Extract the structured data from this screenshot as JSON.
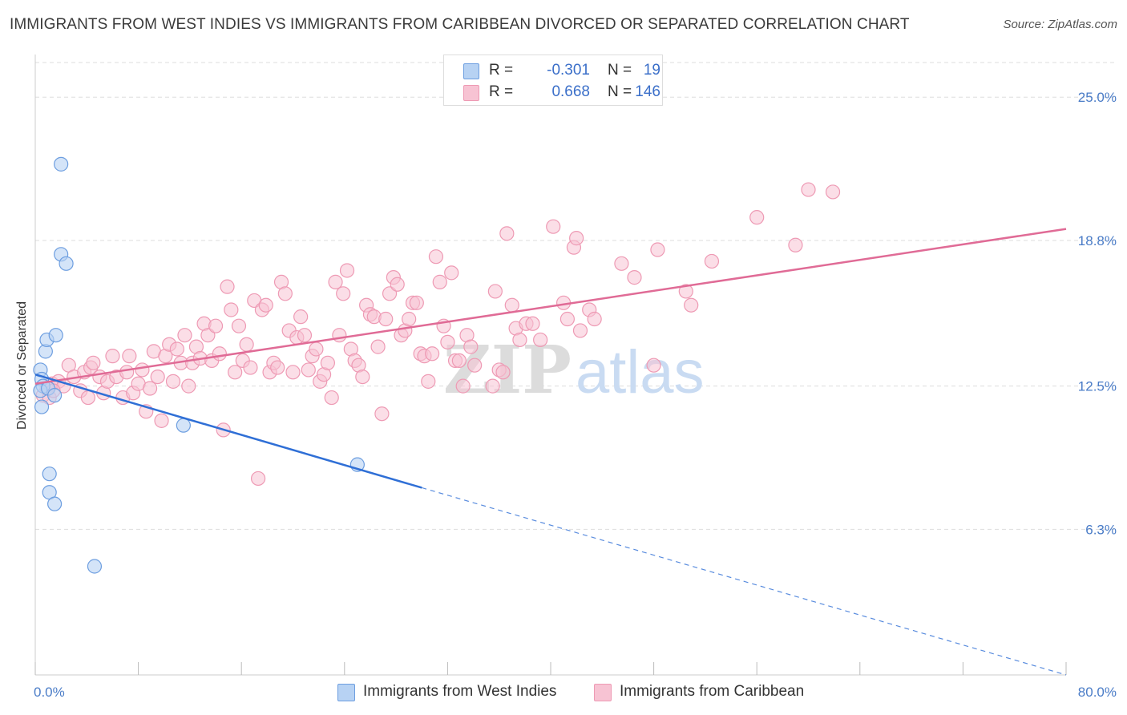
{
  "title": "IMMIGRANTS FROM WEST INDIES VS IMMIGRANTS FROM CARIBBEAN DIVORCED OR SEPARATED CORRELATION CHART",
  "source": "Source: ZipAtlas.com",
  "watermark": {
    "zip": "ZIP",
    "atlas": "atlas"
  },
  "colors": {
    "blue_fill": "#b7d2f3",
    "blue_stroke": "#6d9ee0",
    "blue_line": "#2f6fd6",
    "pink_fill": "#f7c3d3",
    "pink_stroke": "#ee9ab4",
    "pink_line": "#e06b96",
    "grid": "#dddddd",
    "tick_text": "#4a7cc7"
  },
  "legend": {
    "r_label": "R =",
    "n_label": "N =",
    "rows": [
      {
        "r": "-0.301",
        "n": "19"
      },
      {
        "r": "0.668",
        "n": "146"
      }
    ]
  },
  "chart_data": {
    "type": "scatter",
    "title": "IMMIGRANTS FROM WEST INDIES VS IMMIGRANTS FROM CARIBBEAN DIVORCED OR SEPARATED CORRELATION CHART",
    "xlabel": "",
    "ylabel": "Divorced or Separated",
    "xlim": [
      0,
      80
    ],
    "ylim": [
      0,
      26.5
    ],
    "x_tick_labels": [
      "0.0%",
      "80.0%"
    ],
    "y_ticks": [
      6.3,
      12.5,
      18.8,
      25.0
    ],
    "y_tick_labels": [
      "6.3%",
      "12.5%",
      "18.8%",
      "25.0%"
    ],
    "grid": true,
    "legend_position": "bottom",
    "series": [
      {
        "name": "Immigrants from West Indies",
        "color": "#6d9ee0",
        "trend": {
          "x0": 0,
          "y0": 13.0,
          "x1": 30,
          "y1": 8.1,
          "dash_to_x": 80,
          "dash_to_y": 0.0
        },
        "points": [
          [
            0.4,
            13.2
          ],
          [
            0.5,
            12.8
          ],
          [
            0.6,
            12.5
          ],
          [
            0.4,
            12.3
          ],
          [
            0.5,
            11.6
          ],
          [
            0.8,
            14.0
          ],
          [
            0.9,
            14.5
          ],
          [
            1.0,
            12.4
          ],
          [
            1.5,
            12.1
          ],
          [
            1.6,
            14.7
          ],
          [
            2.0,
            18.2
          ],
          [
            2.4,
            17.8
          ],
          [
            2.0,
            22.1
          ],
          [
            1.1,
            8.7
          ],
          [
            1.1,
            7.9
          ],
          [
            1.5,
            7.4
          ],
          [
            4.6,
            4.7
          ],
          [
            11.5,
            10.8
          ],
          [
            25.0,
            9.1
          ]
        ]
      },
      {
        "name": "Immigrants from Caribbean",
        "color": "#ee9ab4",
        "trend": {
          "x0": 0,
          "y0": 12.6,
          "x1": 80,
          "y1": 19.3
        },
        "points": [
          [
            0.6,
            12.1
          ],
          [
            0.9,
            12.4
          ],
          [
            1.1,
            12.0
          ],
          [
            1.3,
            12.6
          ],
          [
            1.8,
            12.7
          ],
          [
            2.2,
            12.5
          ],
          [
            2.6,
            13.4
          ],
          [
            3.0,
            12.9
          ],
          [
            3.5,
            12.3
          ],
          [
            3.8,
            13.1
          ],
          [
            4.1,
            12.0
          ],
          [
            4.3,
            13.3
          ],
          [
            4.5,
            13.5
          ],
          [
            5.0,
            12.9
          ],
          [
            5.3,
            12.2
          ],
          [
            5.6,
            12.7
          ],
          [
            6.0,
            13.8
          ],
          [
            6.3,
            12.9
          ],
          [
            6.8,
            12.0
          ],
          [
            7.1,
            13.1
          ],
          [
            7.3,
            13.8
          ],
          [
            7.6,
            12.2
          ],
          [
            8.0,
            12.6
          ],
          [
            8.3,
            13.2
          ],
          [
            8.6,
            11.4
          ],
          [
            8.9,
            12.4
          ],
          [
            9.2,
            14.0
          ],
          [
            9.5,
            12.9
          ],
          [
            9.8,
            11.0
          ],
          [
            10.1,
            13.8
          ],
          [
            10.4,
            14.3
          ],
          [
            10.7,
            12.7
          ],
          [
            11.0,
            14.1
          ],
          [
            11.3,
            13.5
          ],
          [
            11.6,
            14.7
          ],
          [
            11.9,
            12.5
          ],
          [
            12.2,
            13.5
          ],
          [
            12.5,
            14.2
          ],
          [
            12.8,
            13.7
          ],
          [
            13.1,
            15.2
          ],
          [
            13.4,
            14.7
          ],
          [
            13.7,
            13.6
          ],
          [
            14.0,
            15.1
          ],
          [
            14.3,
            13.9
          ],
          [
            14.6,
            10.6
          ],
          [
            14.9,
            16.8
          ],
          [
            15.2,
            15.8
          ],
          [
            15.5,
            13.1
          ],
          [
            15.8,
            15.1
          ],
          [
            16.1,
            13.6
          ],
          [
            16.4,
            14.3
          ],
          [
            16.7,
            13.3
          ],
          [
            17.0,
            16.2
          ],
          [
            17.3,
            8.5
          ],
          [
            17.6,
            15.8
          ],
          [
            17.9,
            16.0
          ],
          [
            18.2,
            13.1
          ],
          [
            18.5,
            13.5
          ],
          [
            18.8,
            13.3
          ],
          [
            19.1,
            17.0
          ],
          [
            19.4,
            16.5
          ],
          [
            19.7,
            14.9
          ],
          [
            20.0,
            13.1
          ],
          [
            20.3,
            14.6
          ],
          [
            20.6,
            15.5
          ],
          [
            20.9,
            14.7
          ],
          [
            21.2,
            13.2
          ],
          [
            21.5,
            13.8
          ],
          [
            21.8,
            14.1
          ],
          [
            22.1,
            12.7
          ],
          [
            22.4,
            13.0
          ],
          [
            22.7,
            13.5
          ],
          [
            23.0,
            12.0
          ],
          [
            23.3,
            17.0
          ],
          [
            23.6,
            14.7
          ],
          [
            23.9,
            16.5
          ],
          [
            24.2,
            17.5
          ],
          [
            24.5,
            14.1
          ],
          [
            24.8,
            13.6
          ],
          [
            25.1,
            13.4
          ],
          [
            25.4,
            12.9
          ],
          [
            25.7,
            16.0
          ],
          [
            26.0,
            15.6
          ],
          [
            26.3,
            15.5
          ],
          [
            26.6,
            14.2
          ],
          [
            26.9,
            11.3
          ],
          [
            27.2,
            15.4
          ],
          [
            27.5,
            16.5
          ],
          [
            27.8,
            17.2
          ],
          [
            28.1,
            16.9
          ],
          [
            28.4,
            14.7
          ],
          [
            28.7,
            14.9
          ],
          [
            29.0,
            15.4
          ],
          [
            29.3,
            16.1
          ],
          [
            29.6,
            16.1
          ],
          [
            29.9,
            13.9
          ],
          [
            30.2,
            13.8
          ],
          [
            30.5,
            12.7
          ],
          [
            30.8,
            13.9
          ],
          [
            31.1,
            18.1
          ],
          [
            31.4,
            17.0
          ],
          [
            31.7,
            15.1
          ],
          [
            32.0,
            14.4
          ],
          [
            32.3,
            17.4
          ],
          [
            32.6,
            13.6
          ],
          [
            32.9,
            13.6
          ],
          [
            33.2,
            12.5
          ],
          [
            33.5,
            14.7
          ],
          [
            33.8,
            14.2
          ],
          [
            34.1,
            13.4
          ],
          [
            35.5,
            12.5
          ],
          [
            35.7,
            16.6
          ],
          [
            36.0,
            13.2
          ],
          [
            36.3,
            13.1
          ],
          [
            36.6,
            19.1
          ],
          [
            37.0,
            16.0
          ],
          [
            37.3,
            15.0
          ],
          [
            37.6,
            14.5
          ],
          [
            38.1,
            15.2
          ],
          [
            38.6,
            15.2
          ],
          [
            39.2,
            14.5
          ],
          [
            40.2,
            19.4
          ],
          [
            41.0,
            16.1
          ],
          [
            41.3,
            15.4
          ],
          [
            41.8,
            18.5
          ],
          [
            42.0,
            18.9
          ],
          [
            42.3,
            14.9
          ],
          [
            43.0,
            15.8
          ],
          [
            43.4,
            15.4
          ],
          [
            45.5,
            17.8
          ],
          [
            46.5,
            17.2
          ],
          [
            48.0,
            13.4
          ],
          [
            48.3,
            18.4
          ],
          [
            50.5,
            16.6
          ],
          [
            50.9,
            16.0
          ],
          [
            52.5,
            17.9
          ],
          [
            56.0,
            19.8
          ],
          [
            59.0,
            18.6
          ],
          [
            60.0,
            21.0
          ],
          [
            61.9,
            20.9
          ],
          [
            1.4,
            12.3
          ]
        ]
      }
    ]
  }
}
